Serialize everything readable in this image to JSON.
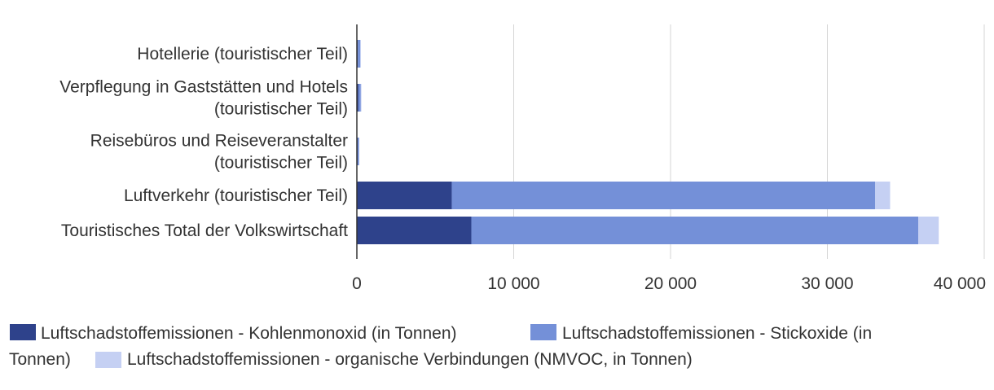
{
  "chart_data": {
    "type": "bar",
    "orientation": "horizontal",
    "stacked": true,
    "categories": [
      [
        "Hotellerie (touristischer Teil)"
      ],
      [
        "Verpflegung in Gaststätten und Hotels",
        "(touristischer Teil)"
      ],
      [
        "Reisebüros und Reiseveranstalter",
        "(touristischer Teil)"
      ],
      [
        "Luftverkehr (touristischer Teil)"
      ],
      [
        "Touristisches Total der Volkswirtschaft"
      ]
    ],
    "series": [
      {
        "name": "Luftschadstoffemissionen - Kohlenmonoxid (in Tonnen)",
        "color": "#2e428b",
        "values": [
          60,
          100,
          50,
          6050,
          7300
        ]
      },
      {
        "name": "Luftschadstoffemissionen - Stickoxide (in Tonnen)",
        "color": "#7490d8",
        "values": [
          150,
          150,
          80,
          27000,
          28500
        ]
      },
      {
        "name": "Luftschadstoffemissionen - organische Verbindungen (NMVOC, in Tonnen)",
        "color": "#c5d0f3",
        "values": [
          50,
          40,
          20,
          950,
          1300
        ]
      }
    ],
    "xlim": [
      0,
      40000
    ],
    "xticks": [
      0,
      10000,
      20000,
      30000,
      40000
    ],
    "xtick_labels": [
      "0",
      "10 000",
      "20 000",
      "30 000",
      "40 000"
    ],
    "grid": true,
    "legend_position": "bottom",
    "title": "",
    "xlabel": "",
    "ylabel": ""
  }
}
